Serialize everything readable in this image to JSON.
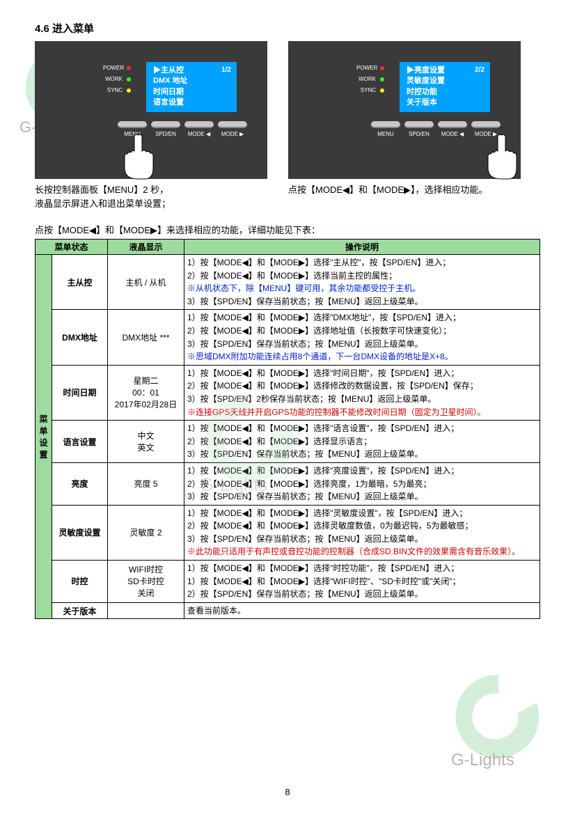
{
  "section_title": "4.6  进入菜单",
  "leds": [
    {
      "label": "POWER",
      "color": "#ff2a2a"
    },
    {
      "label": "WORK",
      "color": "#2aff2a"
    },
    {
      "label": "SYNC",
      "color": "#ffef2a"
    }
  ],
  "panel1": {
    "page": "1/2",
    "lines": [
      "▶主从控",
      "DMX 地址",
      "时间日期",
      "语言设置"
    ],
    "buttons": [
      "MENU",
      "SPD/EN",
      "MODE ◀",
      "MODE ▶"
    ]
  },
  "panel2": {
    "page": "2/2",
    "lines": [
      "▶亮度设置",
      "灵敏度设置",
      "时控功能",
      "关于版本"
    ],
    "buttons": [
      "MENU",
      "SPD/EN",
      "MODE ◀",
      "MODE ▶"
    ]
  },
  "caption1_l1": "长按控制器面板【MENU】2 秒，",
  "caption1_l2": "液晶显示屏进入和退出菜单设置；",
  "caption2": "点按【MODE◀】和【MODE▶】，选择相应功能。",
  "intro": "点按【MODE◀】和【MODE▶】来选择相应的功能，详细功能见下表：",
  "headers": {
    "c1": "菜单状态",
    "c2": "液晶显示",
    "c3": "操作说明"
  },
  "vheader": "菜\n单\n设\n置",
  "rows": [
    {
      "menu": "主从控",
      "disp": "主机 / 从机",
      "ops": [
        {
          "t": "1）按【MODE◀】和【MODE▶】选择\"主从控\"，按【SPD/EN】进入；"
        },
        {
          "t": "2）按【MODE◀】和【MODE▶】选择当前主控的属性；"
        },
        {
          "t": "   ※从机状态下，除【MENU】键可用，其余功能都受控于主机。",
          "cls": "blue"
        },
        {
          "t": "3）按【SPD/EN】保存当前状态；按【MENU】返回上级菜单。"
        }
      ]
    },
    {
      "menu": "DMX地址",
      "disp": "DMX地址 ***",
      "ops": [
        {
          "t": "1）按【MODE◀】和【MODE▶】选择\"DMX地址\"，按【SPD/EN】进入；"
        },
        {
          "t": "2）按【MODE◀】和【MODE▶】选择地址值（长按数字可快速变化）；"
        },
        {
          "t": "3）按【SPD/EN】保存当前状态；按【MENU】返回上级菜单。"
        },
        {
          "t": "※思域DMX附加功能连续占用8个通道，下一台DMX设备的地址是X+8。",
          "cls": "blue"
        }
      ]
    },
    {
      "menu": "时间日期",
      "disp": "星期二\n00：01\n2017年02月28日",
      "ops": [
        {
          "t": "1）按【MODE◀】和【MODE▶】选择\"时间日期\"，按【SPD/EN】进入；"
        },
        {
          "t": "2）按【MODE◀】和【MODE▶】选择修改的数据设置，按【SPD/EN】保存；"
        },
        {
          "t": "3）按【SPD/EN】2秒保存当前状态；按【MENU】返回上级菜单。"
        },
        {
          "t": "※连接GPS天线并开启GPS功能的控制器不能修改时间日期（固定为卫星时间）。",
          "cls": "red"
        }
      ]
    },
    {
      "menu": "语言设置",
      "disp": "中文\n英文",
      "ops": [
        {
          "t": "1）按【MODE◀】和【MODE▶】选择\"语言设置\"，按【SPD/EN】进入；"
        },
        {
          "t": "2）按【MODE◀】和【MODE▶】选择显示语言；"
        },
        {
          "t": "3）按【SPD/EN】保存当前状态；按【MENU】返回上级菜单。"
        }
      ]
    },
    {
      "menu": "亮度",
      "disp": "亮度 5",
      "ops": [
        {
          "t": "1）按【MODE◀】和【MODE▶】选择\"亮度设置\"，按【SPD/EN】进入；"
        },
        {
          "t": "2）按【MODE◀】和【MODE▶】选择亮度，1为最暗，5为最亮；"
        },
        {
          "t": "3）按【SPD/EN】保存当前状态；按【MENU】返回上级菜单。"
        }
      ]
    },
    {
      "menu": "灵敏度设置",
      "disp": "灵敏度 2",
      "ops": [
        {
          "t": "1）按【MODE◀】和【MODE▶】选择\"灵敏度设置\"，按【SPD/EN】进入；"
        },
        {
          "t": "2）按【MODE◀】和【MODE▶】选择灵敏度数值，0为最迟钝，5为最敏感；"
        },
        {
          "t": "3）按【SPD/EN】保存当前状态；按【MENU】返回上级菜单。"
        },
        {
          "t": "※此功能只适用于有声控或音控功能的控制器（合成SD.BIN文件的效果需含有音乐效果）。",
          "cls": "red"
        }
      ]
    },
    {
      "menu": "时控",
      "disp": "WIFI时控\nSD卡时控\n关闭",
      "ops": [
        {
          "t": "1）按【MODE◀】和【MODE▶】选择\"时控功能\"，按【SPD/EN】进入；"
        },
        {
          "t": "1）按【MODE◀】和【MODE▶】选择\"WIFI时控\"、\"SD卡时控\"或\"关闭\"；"
        },
        {
          "t": "2）按【SPD/EN】保存当前状态；按【MENU】返回上级菜单。"
        }
      ]
    },
    {
      "menu": "关于版本",
      "disp": "",
      "ops": [
        {
          "t": "查看当前版本。"
        }
      ]
    }
  ],
  "page_number": "8",
  "watermark_text": "G-Lights",
  "watermark_color": "#8fd19e"
}
